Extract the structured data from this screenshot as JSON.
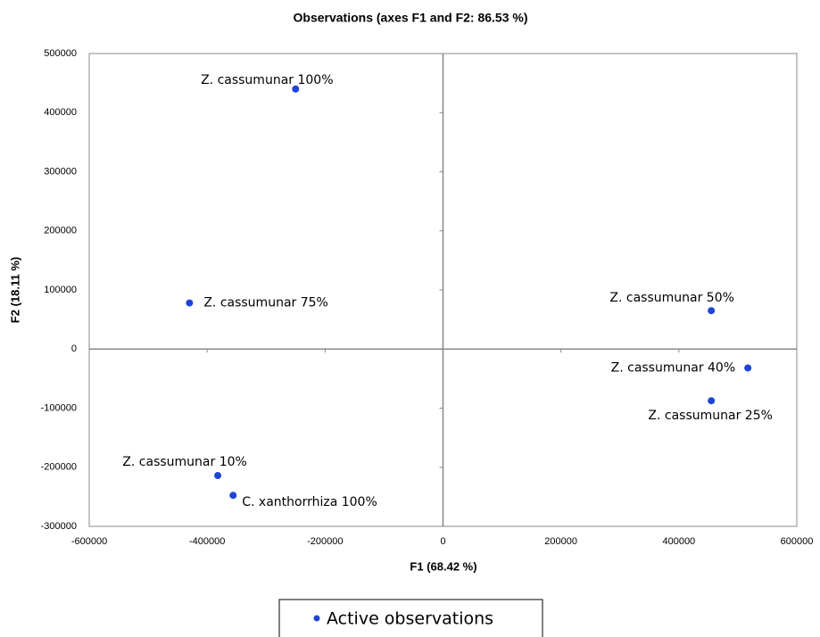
{
  "chart_data": {
    "type": "scatter",
    "title": "Observations (axes F1 and F2: 86.53 %)",
    "x_label": "F1 (68.42 %)",
    "y_label": "F2 (18.11 %)",
    "xlim": [
      -600000,
      600000
    ],
    "ylim": [
      -300000,
      500000
    ],
    "xticks": [
      -600000,
      -400000,
      -200000,
      0,
      200000,
      400000,
      600000
    ],
    "yticks": [
      -300000,
      -200000,
      -100000,
      0,
      100000,
      200000,
      300000,
      400000,
      500000
    ],
    "series": [
      {
        "name": "Active observations",
        "color": "#1f45d6",
        "labels": [
          "Z. cassumunar 100%",
          "Z. cassumunar 75%",
          "Z. cassumunar 50%",
          "Z. cassumunar 40%",
          "Z. cassumunar 25%",
          "Z. cassumunar 10%",
          "C. xanthorrhiza 100%"
        ],
        "x": [
          -250000,
          -430000,
          455000,
          517000,
          455000,
          -382000,
          -356000
        ],
        "values": [
          440000,
          78000,
          65000,
          -32000,
          -87500,
          -214000,
          -247500
        ]
      }
    ]
  }
}
